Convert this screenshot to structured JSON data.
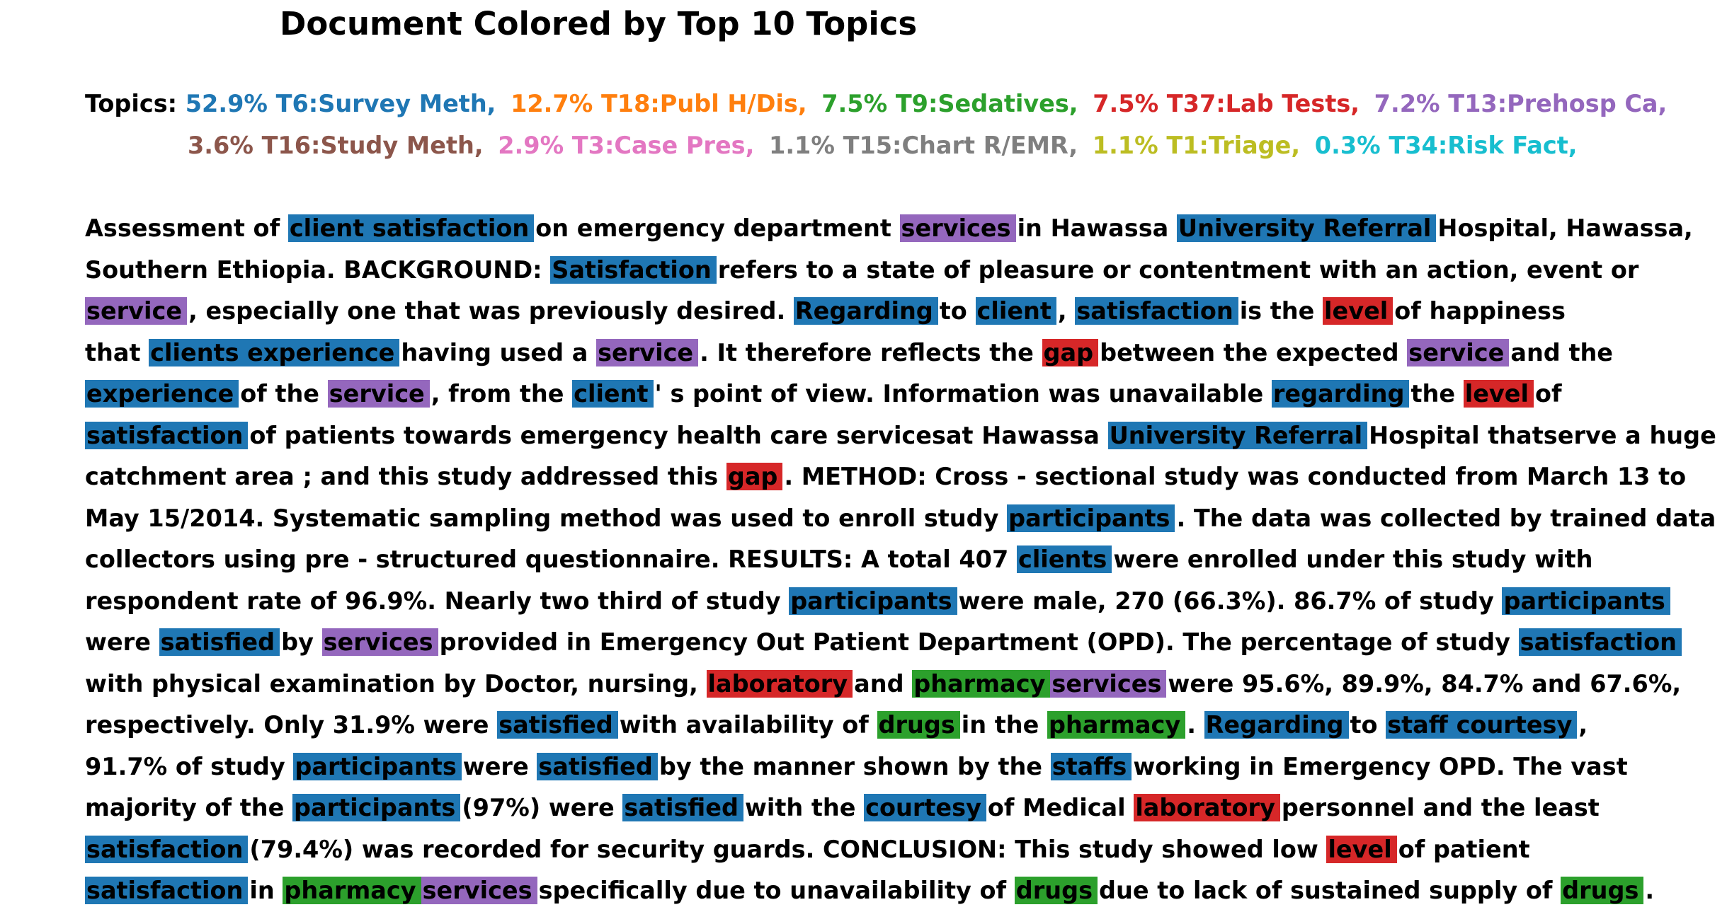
{
  "title": "Document Colored by Top 10 Topics",
  "colors": {
    "T6": "#1f77b4",
    "T18": "#ff7f0e",
    "T9": "#2ca02c",
    "T37": "#d62728",
    "T13": "#9467bd",
    "T16": "#8c564b",
    "T3": "#e377c2",
    "T15": "#7f7f7f",
    "T1": "#bcbd22",
    "T34": "#17becf"
  },
  "topics_label": "Topics:",
  "topics": [
    [
      {
        "text": "52.9% T6:Survey Meth,",
        "topic": "T6"
      },
      {
        "text": "12.7% T18:Publ H/Dis,",
        "topic": "T18"
      },
      {
        "text": "7.5% T9:Sedatives,",
        "topic": "T9"
      },
      {
        "text": "7.5% T37:Lab Tests,",
        "topic": "T37"
      },
      {
        "text": "7.2% T13:Prehosp Ca,",
        "topic": "T13"
      }
    ],
    [
      {
        "text": "3.6% T16:Study Meth,",
        "topic": "T16"
      },
      {
        "text": "2.9% T3:Case Pres,",
        "topic": "T3"
      },
      {
        "text": "1.1% T15:Chart R/EMR,",
        "topic": "T15"
      },
      {
        "text": "1.1% T1:Triage,",
        "topic": "T1"
      },
      {
        "text": "0.3% T34:Risk Fact,",
        "topic": "T34"
      }
    ]
  ],
  "document": [
    [
      {
        "t": "Assessment of "
      },
      {
        "t": "client satisfaction",
        "h": "T6"
      },
      {
        "t": "on emergency department "
      },
      {
        "t": "services",
        "h": "T13"
      },
      {
        "t": "in Hawassa "
      },
      {
        "t": "University Referral",
        "h": "T6"
      },
      {
        "t": "Hospital, Hawassa,"
      }
    ],
    [
      {
        "t": "Southern Ethiopia. BACKGROUND: "
      },
      {
        "t": "Satisfaction",
        "h": "T6"
      },
      {
        "t": "refers to a state of pleasure or contentment with an action, event or"
      }
    ],
    [
      {
        "t": "service",
        "h": "T13"
      },
      {
        "t": ", especially one that was previously desired. "
      },
      {
        "t": "Regarding",
        "h": "T6"
      },
      {
        "t": "to "
      },
      {
        "t": "client",
        "h": "T6"
      },
      {
        "t": ", "
      },
      {
        "t": "satisfaction",
        "h": "T6"
      },
      {
        "t": "is the "
      },
      {
        "t": "level",
        "h": "T37"
      },
      {
        "t": "of happiness"
      }
    ],
    [
      {
        "t": "that "
      },
      {
        "t": "clients experience",
        "h": "T6"
      },
      {
        "t": "having used a "
      },
      {
        "t": "service",
        "h": "T13"
      },
      {
        "t": ". It therefore reflects the "
      },
      {
        "t": "gap",
        "h": "T37"
      },
      {
        "t": "between the expected "
      },
      {
        "t": "service",
        "h": "T13"
      },
      {
        "t": "and the"
      }
    ],
    [
      {
        "t": "experience",
        "h": "T6"
      },
      {
        "t": "of the "
      },
      {
        "t": "service",
        "h": "T13"
      },
      {
        "t": ", from the "
      },
      {
        "t": "client",
        "h": "T6"
      },
      {
        "t": "' s point of view. Information was unavailable "
      },
      {
        "t": "regarding",
        "h": "T6"
      },
      {
        "t": "the "
      },
      {
        "t": "level",
        "h": "T37"
      },
      {
        "t": "of"
      }
    ],
    [
      {
        "t": "satisfaction",
        "h": "T6"
      },
      {
        "t": "of patients towards emergency health care servicesat Hawassa "
      },
      {
        "t": "University Referral",
        "h": "T6"
      },
      {
        "t": "Hospital thatserve a huge"
      }
    ],
    [
      {
        "t": "catchment area ; and this study addressed this "
      },
      {
        "t": "gap",
        "h": "T37"
      },
      {
        "t": ". METHOD: Cross - sectional study was conducted from March 13 to"
      }
    ],
    [
      {
        "t": "May 15/2014. Systematic sampling method was used to enroll study "
      },
      {
        "t": "participants",
        "h": "T6"
      },
      {
        "t": ". The data was collected by trained data"
      }
    ],
    [
      {
        "t": "collectors using pre - structured questionnaire. RESULTS: A total 407 "
      },
      {
        "t": "clients",
        "h": "T6"
      },
      {
        "t": "were enrolled under this study with"
      }
    ],
    [
      {
        "t": "respondent rate of 96.9%. Nearly two third of study "
      },
      {
        "t": "participants",
        "h": "T6"
      },
      {
        "t": "were male, 270 (66.3%). 86.7% of study "
      },
      {
        "t": "participants",
        "h": "T6"
      }
    ],
    [
      {
        "t": "were "
      },
      {
        "t": "satisfied",
        "h": "T6"
      },
      {
        "t": "by "
      },
      {
        "t": "services",
        "h": "T13"
      },
      {
        "t": "provided in Emergency Out Patient Department (OPD). The percentage of study "
      },
      {
        "t": "satisfaction",
        "h": "T6"
      }
    ],
    [
      {
        "t": "with physical examination by Doctor, nursing, "
      },
      {
        "t": "laboratory",
        "h": "T37"
      },
      {
        "t": "and "
      },
      {
        "t": "pharmacy",
        "h": "T9",
        "join": true
      },
      {
        "t": "services",
        "h": "T13"
      },
      {
        "t": "were 95.6%, 89.9%, 84.7% and 67.6%,"
      }
    ],
    [
      {
        "t": "respectively. Only 31.9% were "
      },
      {
        "t": "satisfied",
        "h": "T6"
      },
      {
        "t": "with availability of "
      },
      {
        "t": "drugs",
        "h": "T9"
      },
      {
        "t": "in the "
      },
      {
        "t": "pharmacy",
        "h": "T9"
      },
      {
        "t": ". "
      },
      {
        "t": "Regarding",
        "h": "T6"
      },
      {
        "t": "to "
      },
      {
        "t": "staff courtesy",
        "h": "T6"
      },
      {
        "t": ","
      }
    ],
    [
      {
        "t": "91.7% of study "
      },
      {
        "t": "participants",
        "h": "T6"
      },
      {
        "t": "were "
      },
      {
        "t": "satisfied",
        "h": "T6"
      },
      {
        "t": "by the manner shown by the "
      },
      {
        "t": "staffs",
        "h": "T6"
      },
      {
        "t": "working in Emergency OPD. The vast"
      }
    ],
    [
      {
        "t": "majority of the "
      },
      {
        "t": "participants",
        "h": "T6"
      },
      {
        "t": "(97%) were "
      },
      {
        "t": "satisfied",
        "h": "T6"
      },
      {
        "t": "with the "
      },
      {
        "t": "courtesy",
        "h": "T6"
      },
      {
        "t": "of Medical "
      },
      {
        "t": "laboratory",
        "h": "T37"
      },
      {
        "t": "personnel and the least"
      }
    ],
    [
      {
        "t": "satisfaction",
        "h": "T6"
      },
      {
        "t": "(79.4%) was recorded for security guards. CONCLUSION: This study showed low "
      },
      {
        "t": "level",
        "h": "T37"
      },
      {
        "t": "of patient"
      }
    ],
    [
      {
        "t": "satisfaction",
        "h": "T6"
      },
      {
        "t": "in "
      },
      {
        "t": "pharmacy",
        "h": "T9",
        "join": true
      },
      {
        "t": "services",
        "h": "T13"
      },
      {
        "t": "specifically due to unavailability of "
      },
      {
        "t": "drugs",
        "h": "T9"
      },
      {
        "t": "due to lack of sustained supply of "
      },
      {
        "t": "drugs",
        "h": "T9"
      },
      {
        "t": "."
      }
    ]
  ]
}
